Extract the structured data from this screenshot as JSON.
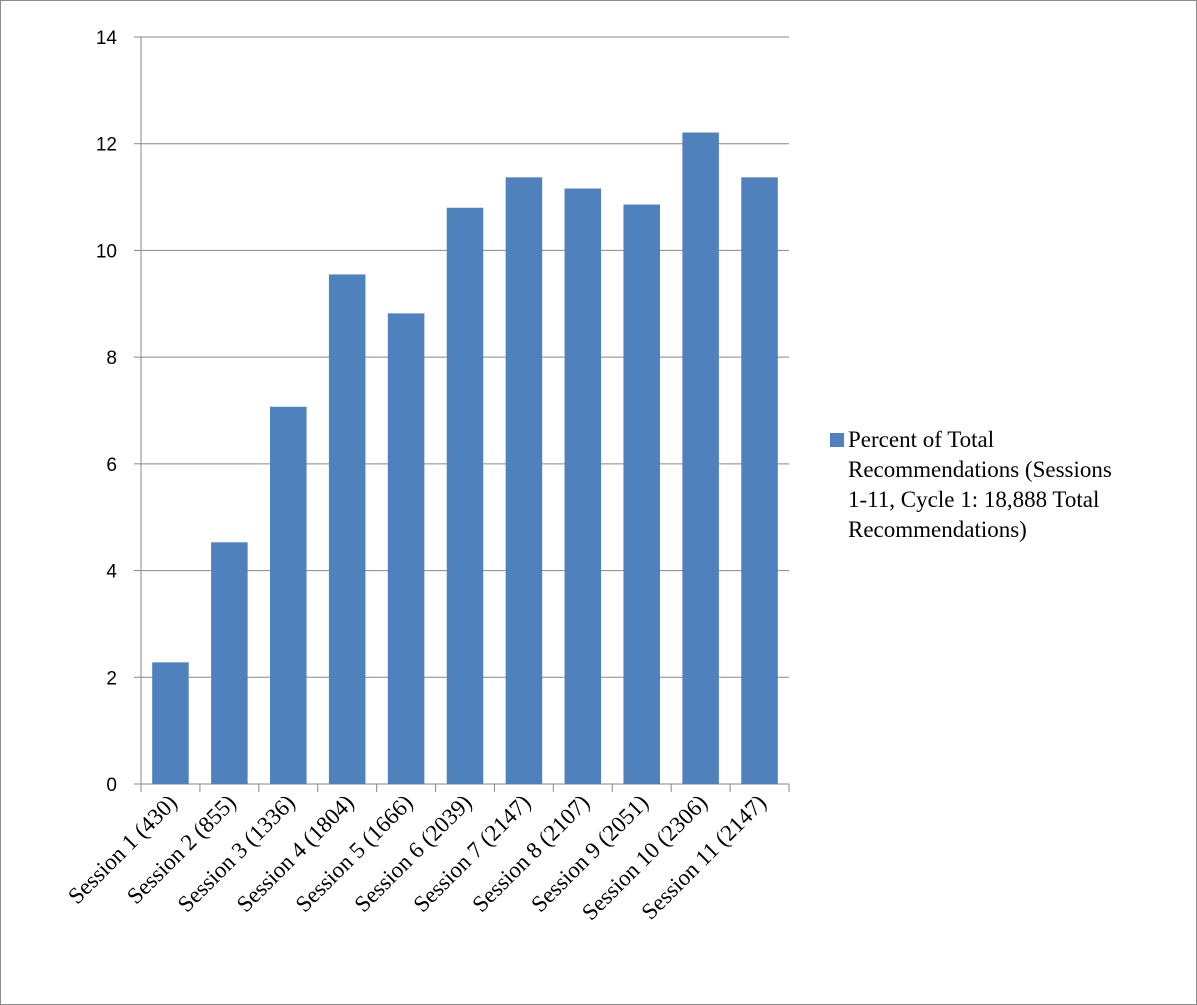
{
  "chart_data": {
    "type": "bar",
    "title": "",
    "xlabel": "",
    "ylabel": "",
    "categories": [
      "Session 1 (430)",
      "Session 2 (855)",
      "Session 3 (1336)",
      "Session 4 (1804)",
      "Session 5 (1666)",
      "Session 6 (2039)",
      "Session 7 (2147)",
      "Session 8 (2107)",
      "Session 9 (2051)",
      "Session 10 (2306)",
      "Session 11 (2147)"
    ],
    "series": [
      {
        "name": "Percent of Total Recommendations (Sessions 1-11, Cycle 1: 18,888 Total Recommendations)",
        "values": [
          2.28,
          4.53,
          7.07,
          9.55,
          8.82,
          10.8,
          11.37,
          11.16,
          10.86,
          12.21,
          11.37
        ],
        "color": "#4f81bd"
      }
    ],
    "ylim": [
      0,
      14
    ],
    "yticks": [
      0,
      2,
      4,
      6,
      8,
      10,
      12,
      14
    ],
    "grid": true,
    "legend_position": "right"
  }
}
